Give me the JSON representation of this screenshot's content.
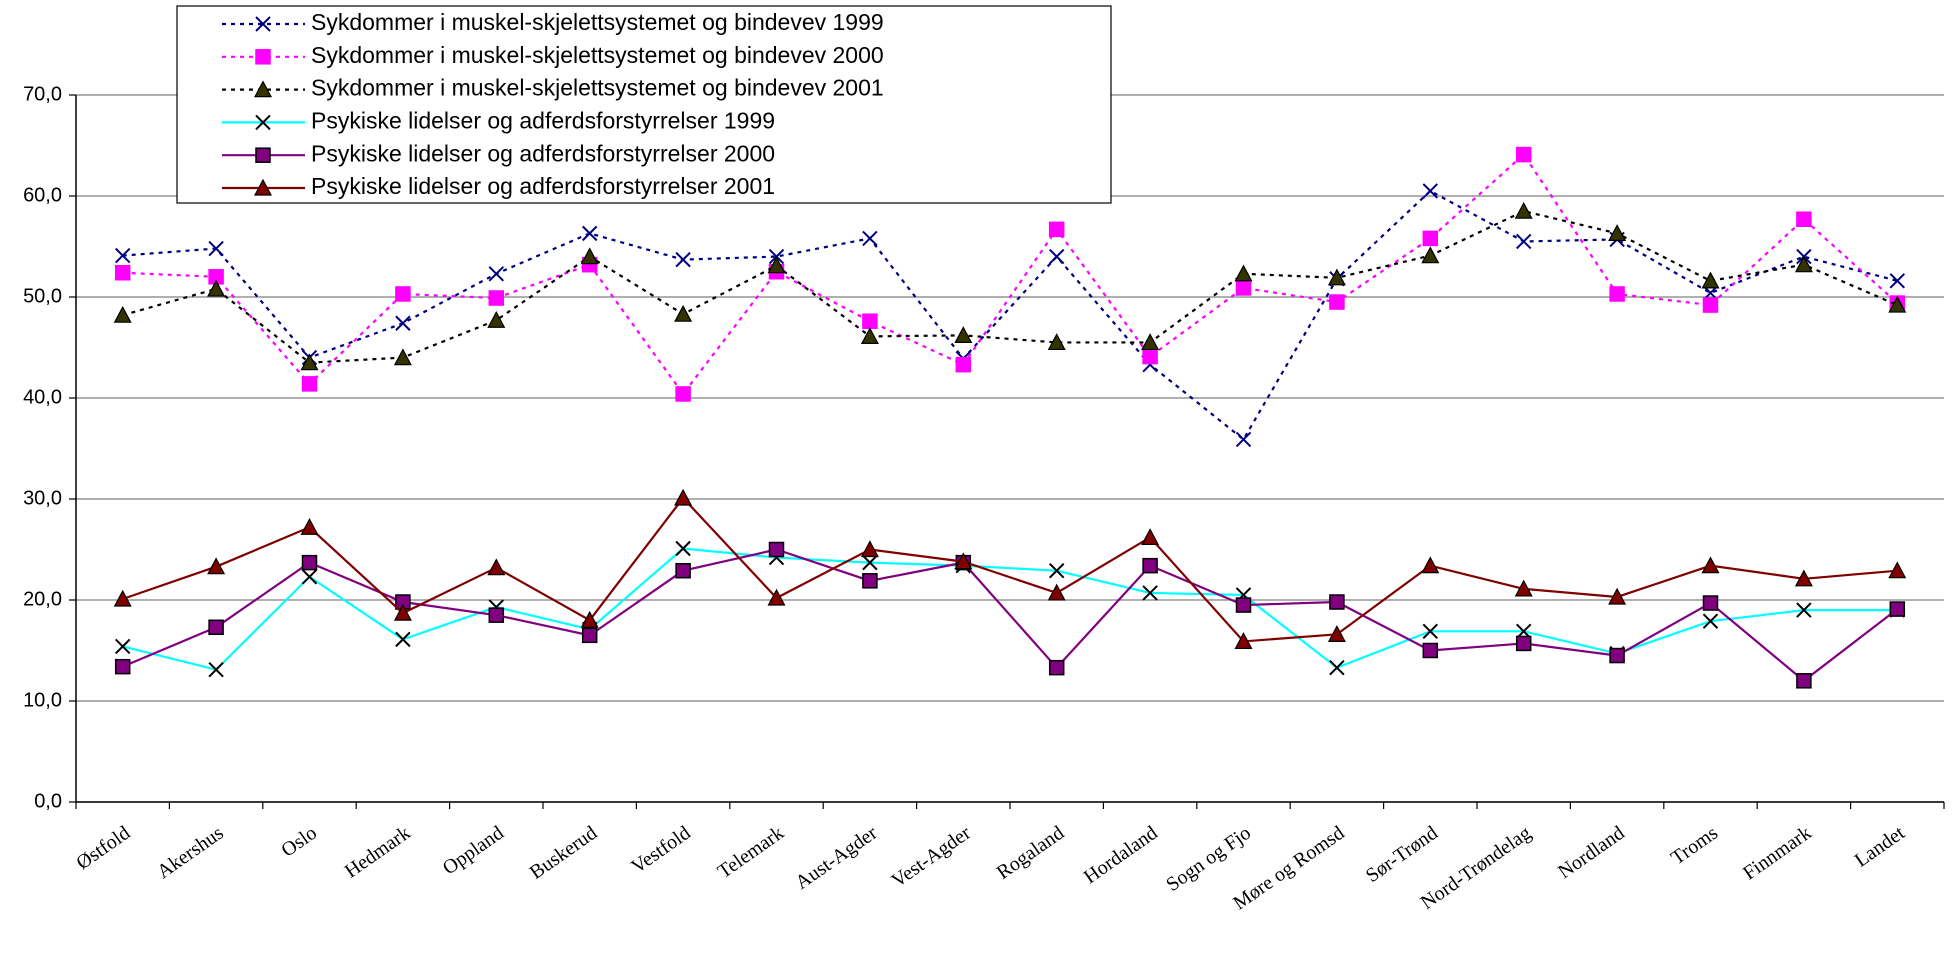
{
  "chart_data": {
    "type": "line",
    "categories": [
      "Østfold",
      "Akershus",
      "Oslo",
      "Hedmark",
      "Oppland",
      "Buskerud",
      "Vestfold",
      "Telemark",
      "Aust-Agder",
      "Vest-Agder",
      "Rogaland",
      "Hordaland",
      "Sogn og Fjo",
      "Møre og Romsd",
      "Sør-Trønd",
      "Nord-Trøndelag",
      "Nordland",
      "Troms",
      "Finnmark",
      "Landet"
    ],
    "series": [
      {
        "name": "Sykdommer i muskel-skjelettsystemet og bindevev 1999",
        "color": "#000080",
        "line_style": "dotted",
        "marker": "x",
        "values": [
          54.1,
          54.8,
          44.0,
          47.4,
          52.3,
          56.3,
          53.7,
          54.0,
          55.8,
          43.9,
          54.0,
          43.3,
          35.9,
          51.8,
          60.5,
          55.5,
          55.7,
          50.4,
          54.0,
          51.6
        ]
      },
      {
        "name": "Sykdommer i muskel-skjelettsystemet og bindevev 2000",
        "color": "#ff00ff",
        "line_style": "dotted",
        "marker": "square",
        "values": [
          52.4,
          52.0,
          41.4,
          50.3,
          49.9,
          53.2,
          40.4,
          52.5,
          47.6,
          43.3,
          56.7,
          44.1,
          50.9,
          49.5,
          55.8,
          64.1,
          50.3,
          49.2,
          57.7,
          49.4
        ]
      },
      {
        "name": "Sykdommer i muskel-skjelettsystemet og bindevev 2001",
        "color": "#000000",
        "line_style": "dotted",
        "marker": "triangle",
        "values": [
          48.2,
          50.8,
          43.5,
          44.0,
          47.7,
          54.0,
          48.3,
          53.1,
          46.1,
          46.2,
          45.5,
          45.5,
          52.3,
          51.9,
          54.1,
          58.5,
          56.3,
          51.6,
          53.2,
          49.2
        ]
      },
      {
        "name": "Psykiske lidelser og adferdsforstyrrelser 1999",
        "color": "#00ffff",
        "line_style": "solid",
        "marker": "x",
        "values": [
          15.4,
          13.1,
          22.3,
          16.1,
          19.3,
          17.1,
          25.1,
          24.2,
          23.7,
          23.4,
          22.9,
          20.7,
          20.5,
          13.3,
          16.9,
          16.9,
          14.7,
          17.9,
          19.0,
          19.0
        ]
      },
      {
        "name": "Psykiske lidelser og adferdsforstyrrelser 2000",
        "color": "#800080",
        "line_style": "solid",
        "marker": "square",
        "values": [
          13.4,
          17.3,
          23.7,
          19.8,
          18.5,
          16.5,
          22.9,
          25.0,
          21.9,
          23.7,
          13.3,
          23.4,
          19.5,
          19.8,
          15.0,
          15.7,
          14.5,
          19.7,
          12.0,
          19.1
        ]
      },
      {
        "name": "Psykiske lidelser og adferdsforstyrrelser 2001",
        "color": "#800000",
        "line_style": "solid",
        "marker": "triangle",
        "values": [
          20.1,
          23.3,
          27.2,
          18.7,
          23.2,
          18.0,
          30.1,
          20.2,
          25.0,
          23.8,
          20.7,
          26.2,
          15.9,
          16.6,
          23.4,
          21.1,
          20.3,
          23.4,
          22.1,
          22.9
        ]
      }
    ],
    "ylim": [
      0,
      70
    ],
    "yticks": [
      {
        "value": 0,
        "label": "0,0"
      },
      {
        "value": 10,
        "label": "10,0"
      },
      {
        "value": 20,
        "label": "20,0"
      },
      {
        "value": 30,
        "label": "30,0"
      },
      {
        "value": 40,
        "label": "40,0"
      },
      {
        "value": 50,
        "label": "50,0"
      },
      {
        "value": 60,
        "label": "60,0"
      },
      {
        "value": 70,
        "label": "70,0"
      }
    ],
    "grid": true,
    "legend": "top-left"
  }
}
